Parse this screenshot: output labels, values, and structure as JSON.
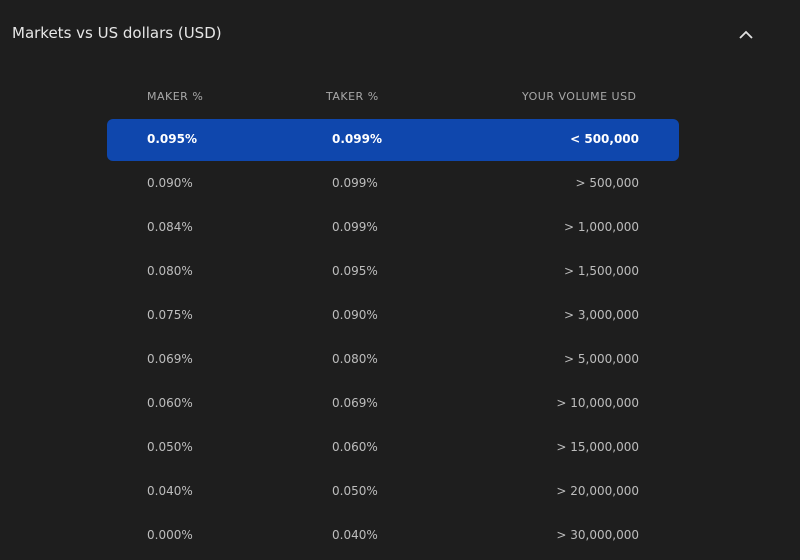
{
  "header": {
    "title": "Markets vs US dollars (USD)"
  },
  "table": {
    "columns": [
      "MAKER %",
      "TAKER %",
      "YOUR VOLUME USD"
    ],
    "rows": [
      [
        "0.095%",
        "0.099%",
        "< 500,000"
      ],
      [
        "0.090%",
        "0.099%",
        "> 500,000"
      ],
      [
        "0.084%",
        "0.099%",
        "> 1,000,000"
      ],
      [
        "0.080%",
        "0.095%",
        "> 1,500,000"
      ],
      [
        "0.075%",
        "0.090%",
        "> 3,000,000"
      ],
      [
        "0.069%",
        "0.080%",
        "> 5,000,000"
      ],
      [
        "0.060%",
        "0.069%",
        "> 10,000,000"
      ],
      [
        "0.050%",
        "0.060%",
        "> 15,000,000"
      ],
      [
        "0.040%",
        "0.050%",
        "> 20,000,000"
      ],
      [
        "0.000%",
        "0.040%",
        "> 30,000,000"
      ]
    ]
  }
}
